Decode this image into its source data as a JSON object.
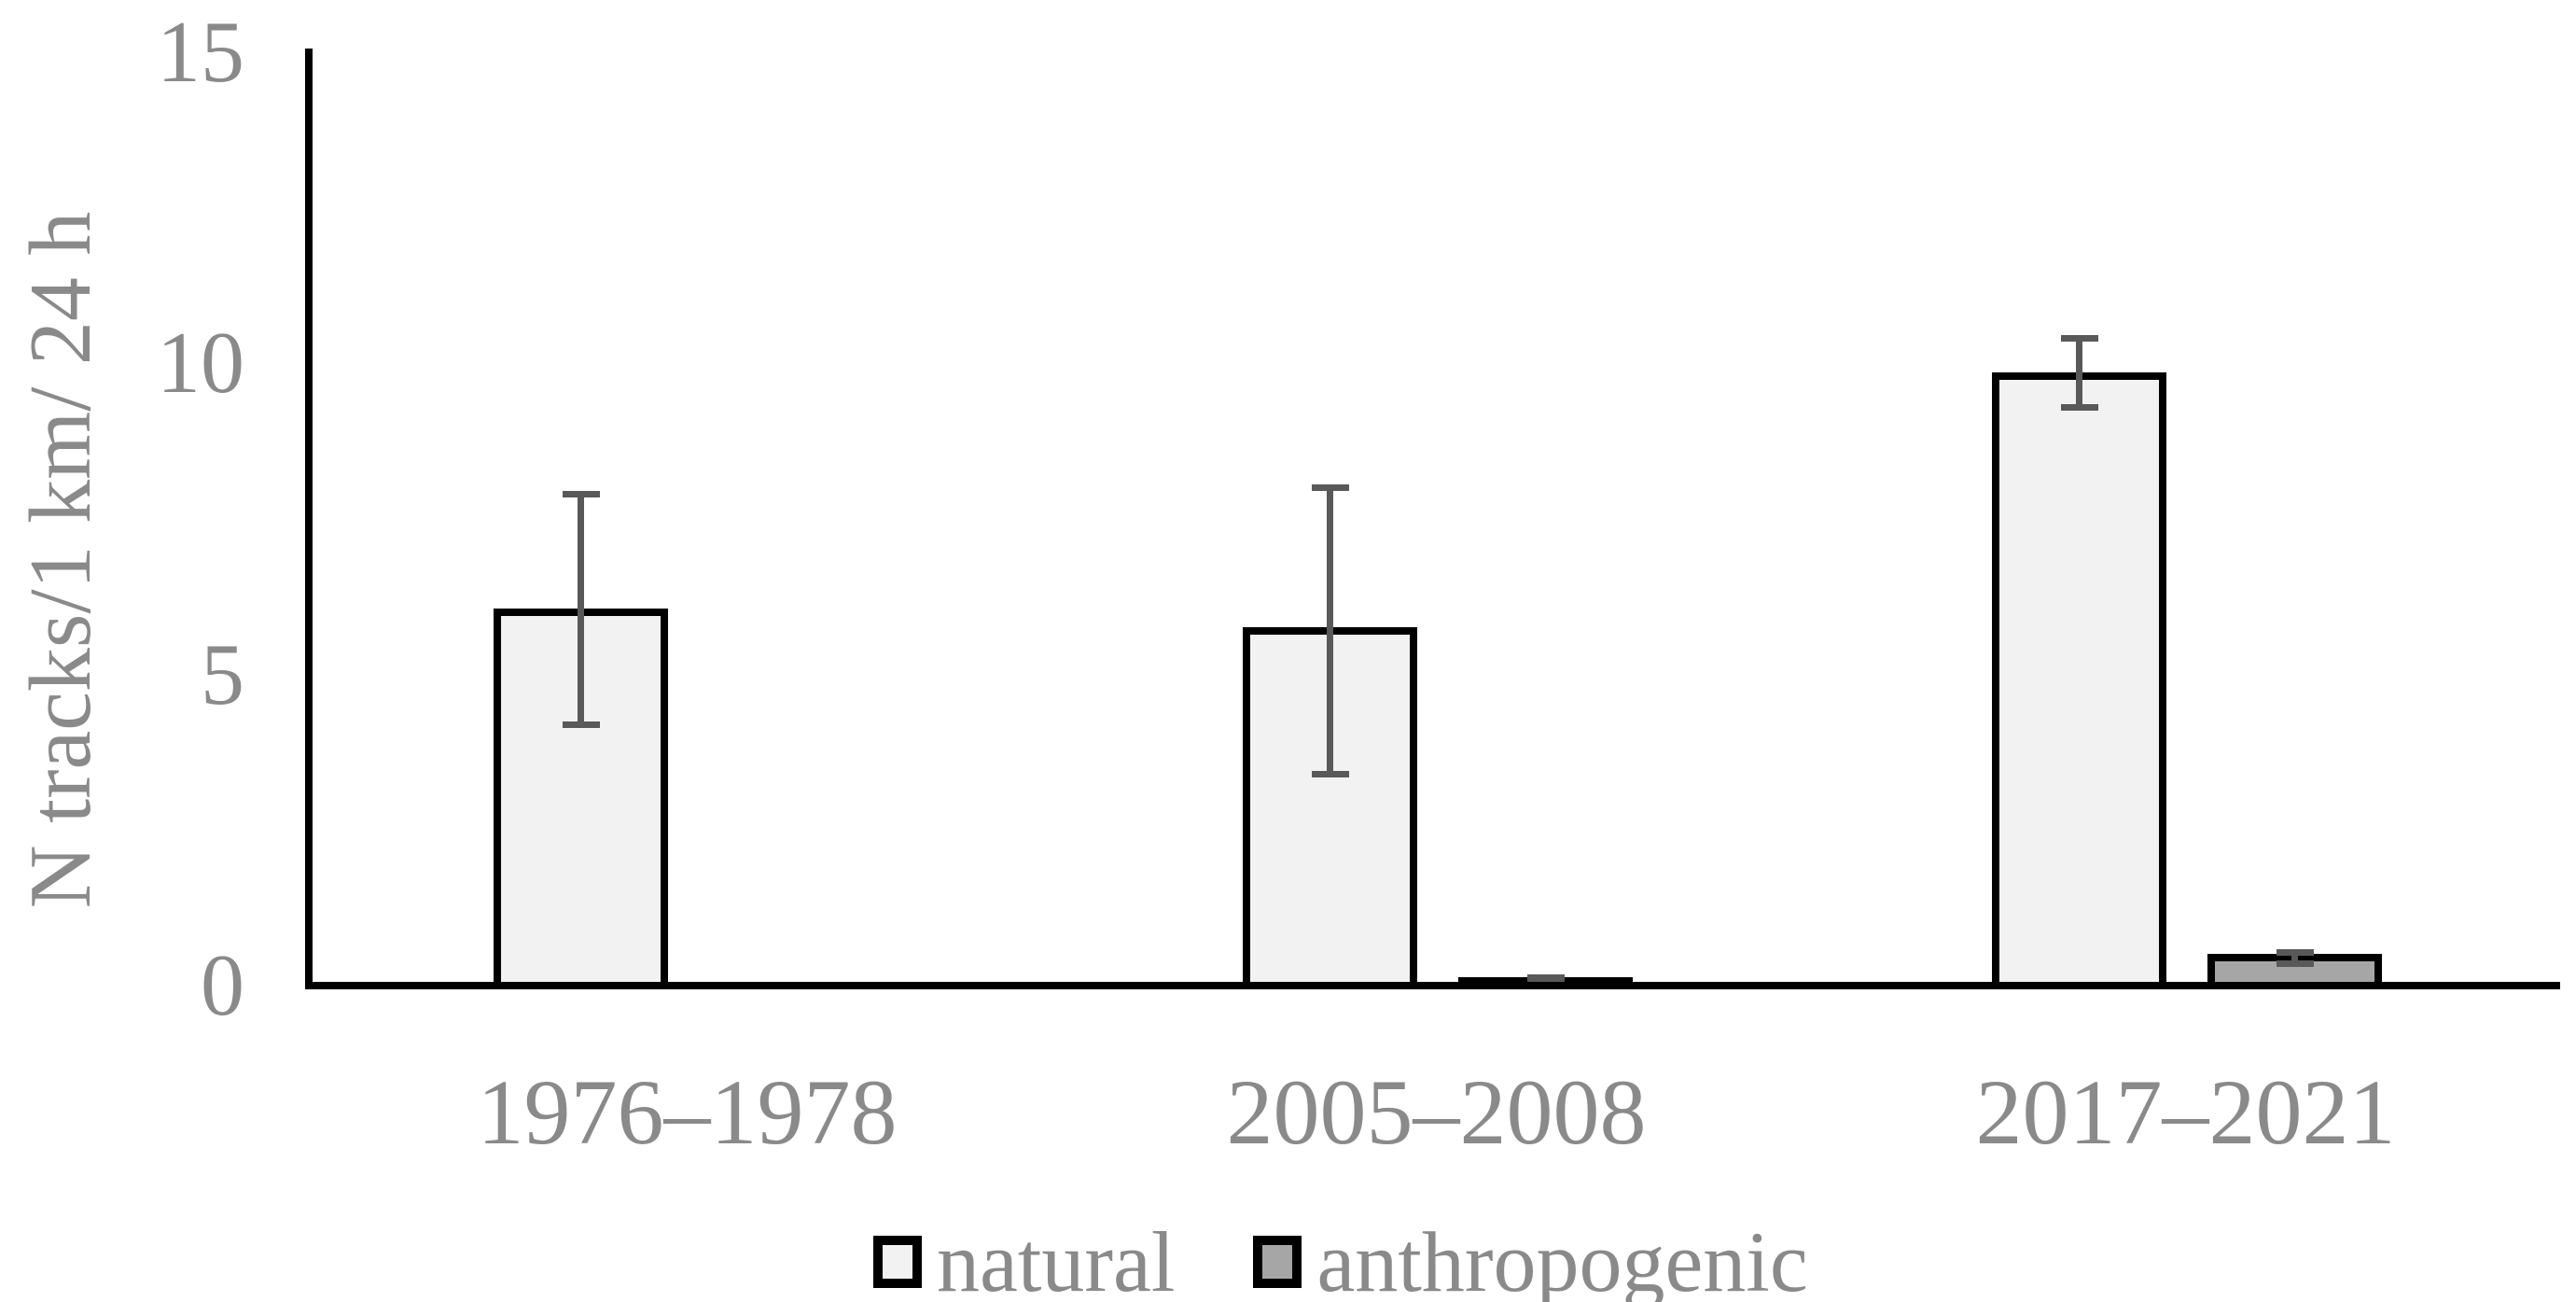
{
  "chart_data": {
    "type": "bar",
    "title": "",
    "categories": [
      "1976–1978",
      "2005–2008",
      "2017–2021"
    ],
    "ylabel": "N tracks/1 km/ 24 h",
    "xlabel": "",
    "ylim": [
      0,
      15
    ],
    "yticks": [
      0,
      5,
      10,
      15
    ],
    "grid": false,
    "legend_position": "bottom-center",
    "series": [
      {
        "name": "natural",
        "fill": "#f2f2f2",
        "values": [
          6.0,
          5.7,
          9.8
        ],
        "error_low": [
          4.2,
          3.4,
          9.3
        ],
        "error_high": [
          7.9,
          8.0,
          10.4
        ]
      },
      {
        "name": "anthropogenic",
        "fill": "#a6a6a6",
        "values": [
          0,
          0.08,
          0.45
        ],
        "error_low": [
          null,
          0.04,
          0.36
        ],
        "error_high": [
          null,
          0.13,
          0.54
        ]
      }
    ]
  },
  "styles": {
    "axis_color": "#000000",
    "bar_border_color": "#000000",
    "error_bar_color": "#595959",
    "text_color": "#8a8a8a",
    "background": "#ffffff"
  }
}
